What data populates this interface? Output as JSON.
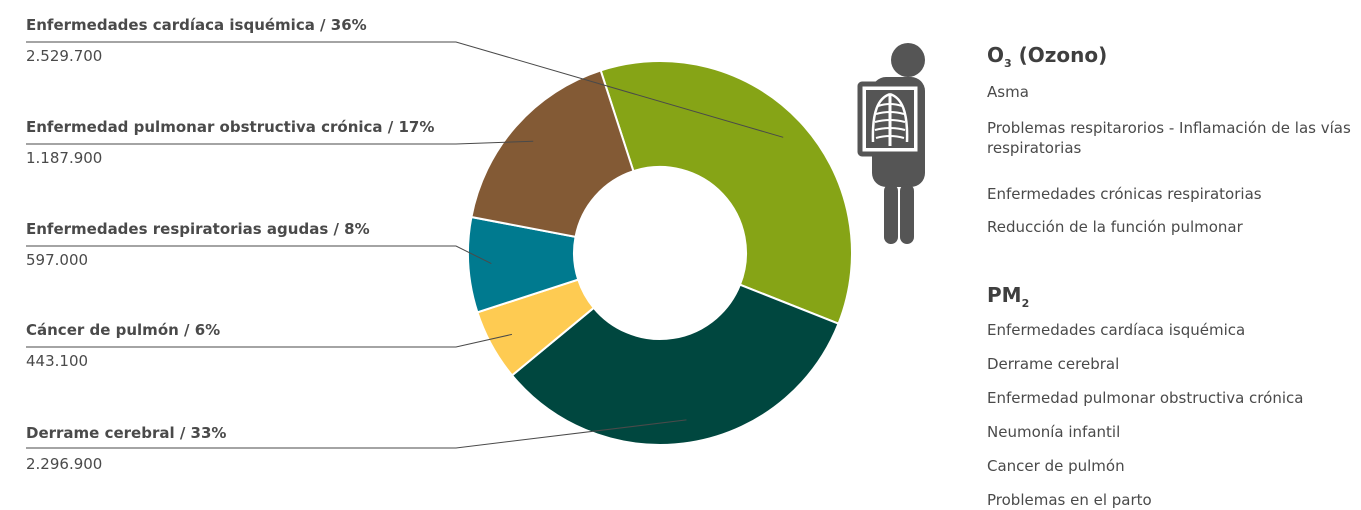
{
  "chart_data": {
    "type": "donut",
    "slices": [
      {
        "label": "Enfermedades cardíaca isquémica / 36%",
        "name": "Enfermedades cardíaca isquémica",
        "percent": 36,
        "value": "2.529.700",
        "color": "#86a416"
      },
      {
        "label": "Derrame cerebral / 33%",
        "name": "Derrame cerebral",
        "percent": 33,
        "value": "2.296.900",
        "color": "#00473f"
      },
      {
        "label": "Cáncer de pulmón / 6%",
        "name": "Cáncer de pulmón",
        "percent": 6,
        "value": "443.100",
        "color": "#fecb52"
      },
      {
        "label": "Enfermedades respiratorias agudas / 8%",
        "name": "Enfermedades respiratorias agudas",
        "percent": 8,
        "value": "597.000",
        "color": "#007a8f"
      },
      {
        "label": "Enfermedad pulmonar obstructiva crónica / 17%",
        "name": "Enfermedad pulmonar obstructiva crónica",
        "percent": 17,
        "value": "1.187.900",
        "color": "#835a35"
      }
    ]
  },
  "labels": [
    {
      "title": "Enfermedades cardíaca isquémica / 36%",
      "value": "2.529.700"
    },
    {
      "title": "Enfermedad pulmonar obstructiva crónica / 17%",
      "value": "1.187.900"
    },
    {
      "title": "Enfermedades respiratorias agudas / 8%",
      "value": "597.000"
    },
    {
      "title": "Cáncer de pulmón / 6%",
      "value": "443.100"
    },
    {
      "title": "Derrame cerebral / 33%",
      "value": "2.296.900"
    }
  ],
  "ozone": {
    "title_main": "O",
    "title_sub": "3",
    "title_rest": " (Ozono)",
    "items": [
      "Asma",
      "Problemas respitarorios - Inflamación de las vías respiratorias",
      "Enfermedades crónicas respiratorias",
      "Reducción de la función pulmonar"
    ]
  },
  "pm": {
    "title_main": "PM",
    "title_sub": "2",
    "items": [
      "Enfermedades cardíaca isquémica",
      "Derrame cerebral",
      "Enfermedad pulmonar obstructiva crónica",
      "Neumonía infantil",
      "Cancer de pulmón",
      "Problemas en el parto"
    ]
  },
  "icon": "xray-human-figure-icon"
}
